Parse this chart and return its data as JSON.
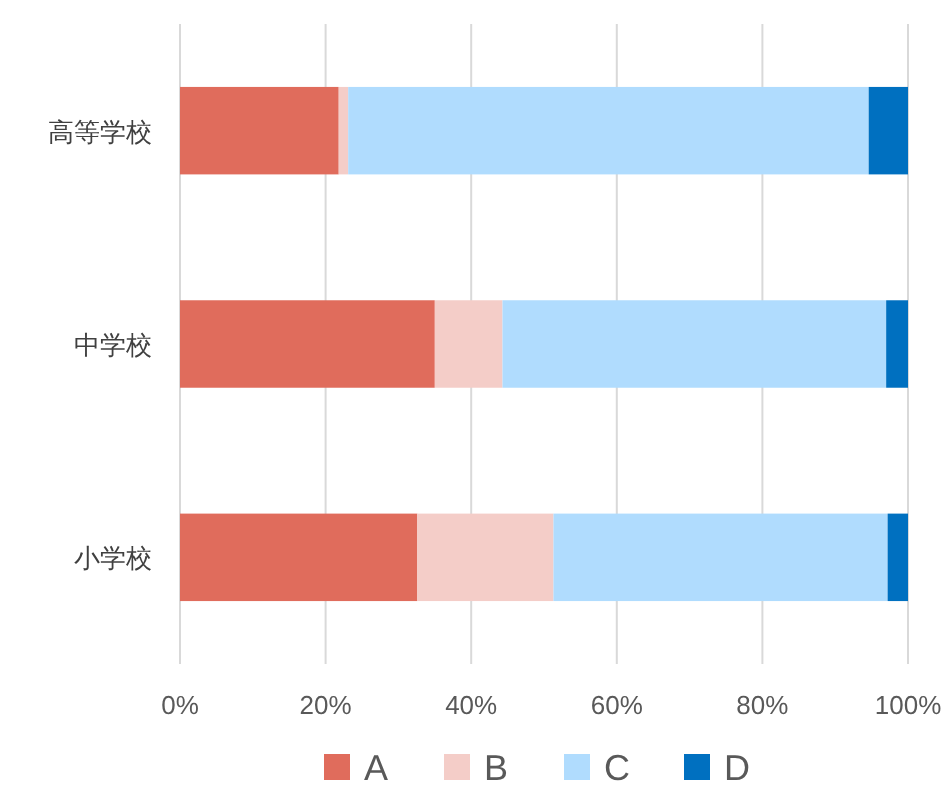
{
  "chart_data": {
    "type": "bar",
    "orientation": "horizontal",
    "stacked": true,
    "categories": [
      "高等学校",
      "中学校",
      "小学校"
    ],
    "series": [
      {
        "name": "A",
        "color": "#e06c5c",
        "values": [
          21.8,
          35.0,
          32.6
        ]
      },
      {
        "name": "B",
        "color": "#f4cdc8",
        "values": [
          1.3,
          9.3,
          18.7
        ]
      },
      {
        "name": "C",
        "color": "#b0dcfe",
        "values": [
          71.5,
          52.7,
          45.9
        ]
      },
      {
        "name": "D",
        "color": "#0070c0",
        "values": [
          5.4,
          3.0,
          2.8
        ]
      }
    ],
    "xlim": [
      0,
      100
    ],
    "xticks": [
      {
        "value": 0,
        "label": "0%"
      },
      {
        "value": 20,
        "label": "20%"
      },
      {
        "value": 40,
        "label": "40%"
      },
      {
        "value": 60,
        "label": "60%"
      },
      {
        "value": 80,
        "label": "80%"
      },
      {
        "value": 100,
        "label": "100%"
      }
    ],
    "grid": "x",
    "legend": "bottom"
  }
}
